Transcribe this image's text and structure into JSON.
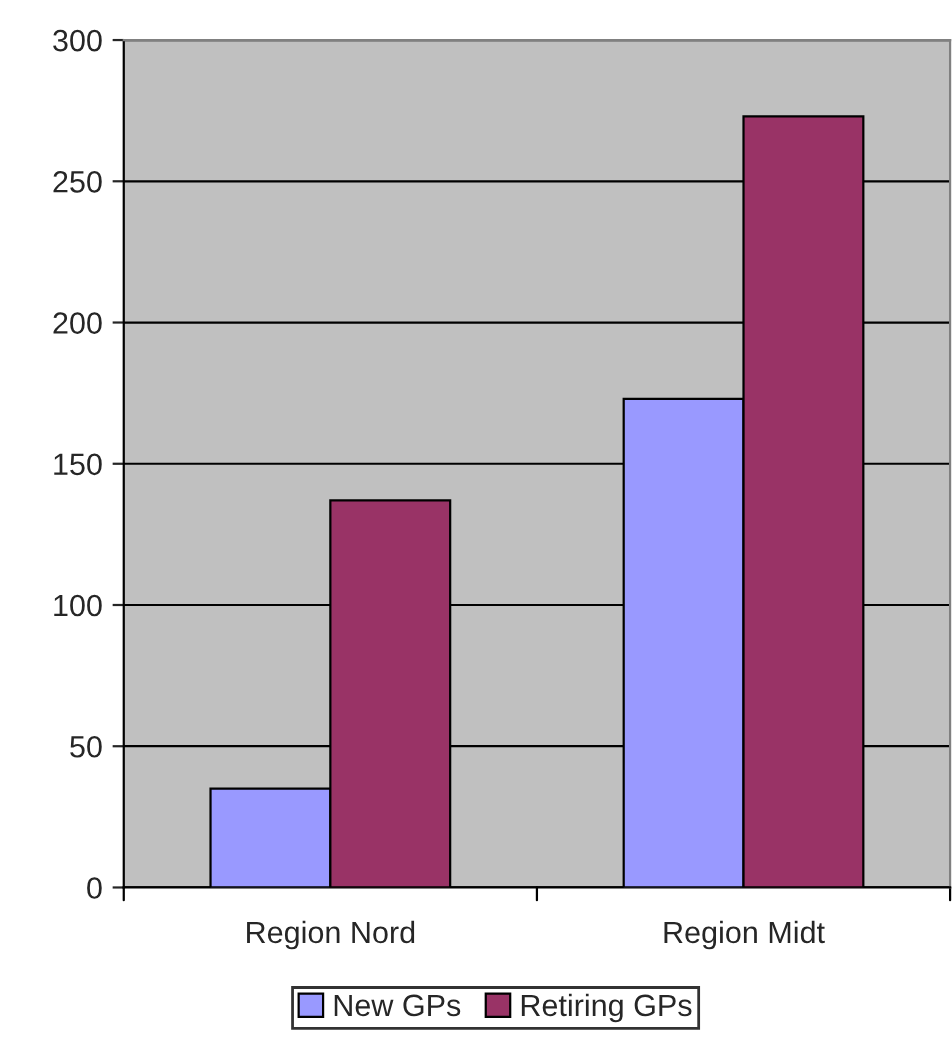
{
  "chart_data": {
    "type": "bar",
    "categories": [
      "Region Nord",
      "Region Midt"
    ],
    "series": [
      {
        "name": "New GPs",
        "color": "#9999ff",
        "values": [
          35,
          173
        ]
      },
      {
        "name": "Retiring GPs",
        "color": "#993366",
        "values": [
          137,
          273
        ]
      }
    ],
    "ylim": [
      0,
      300
    ],
    "yticks": [
      0,
      50,
      100,
      150,
      200,
      250,
      300
    ],
    "grid": "y",
    "legend": "bottom"
  }
}
